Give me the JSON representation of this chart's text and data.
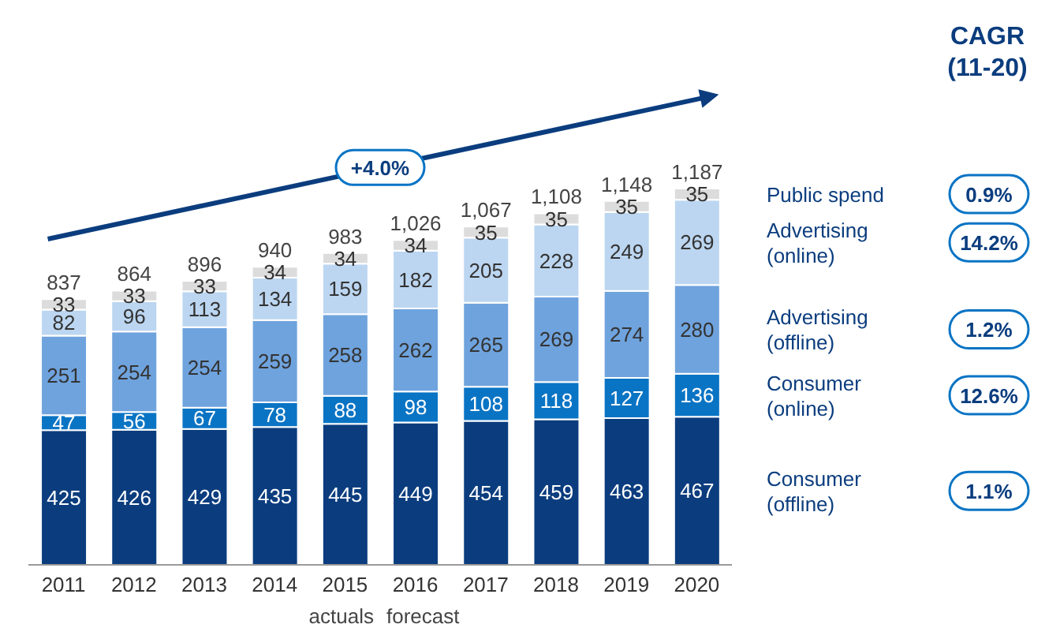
{
  "chart_data": {
    "type": "bar",
    "stacked": true,
    "data_labels": true,
    "legend": "right",
    "categories": [
      "2011",
      "2012",
      "2013",
      "2014",
      "2015",
      "2016",
      "2017",
      "2018",
      "2019",
      "2020"
    ],
    "series": [
      {
        "name": "Consumer (offline)",
        "color": "#0b3d7e",
        "values": [
          425,
          426,
          429,
          435,
          445,
          449,
          454,
          459,
          463,
          467
        ]
      },
      {
        "name": "Consumer (online)",
        "color": "#0a74c4",
        "values": [
          47,
          56,
          67,
          78,
          88,
          98,
          108,
          118,
          127,
          136
        ]
      },
      {
        "name": "Advertising (offline)",
        "color": "#6fa3dd",
        "values": [
          251,
          254,
          254,
          259,
          258,
          262,
          265,
          269,
          274,
          280
        ]
      },
      {
        "name": "Advertising (online)",
        "color": "#bcd6f1",
        "values": [
          82,
          96,
          113,
          134,
          159,
          182,
          205,
          228,
          249,
          269
        ]
      },
      {
        "name": "Public spend",
        "color": "#dcdcdc",
        "values": [
          33,
          33,
          33,
          34,
          34,
          34,
          35,
          35,
          35,
          35
        ]
      }
    ],
    "totals": [
      "837",
      "864",
      "896",
      "940",
      "983",
      "1,026",
      "1,067",
      "1,108",
      "1,148",
      "1,187"
    ],
    "annotations": [
      "+4.0%",
      "actuals",
      "forecast",
      "CAGR\n(11-20)",
      "1.1%",
      "12.6%",
      "1.2%",
      "14.2%",
      "0.9%"
    ]
  }
}
